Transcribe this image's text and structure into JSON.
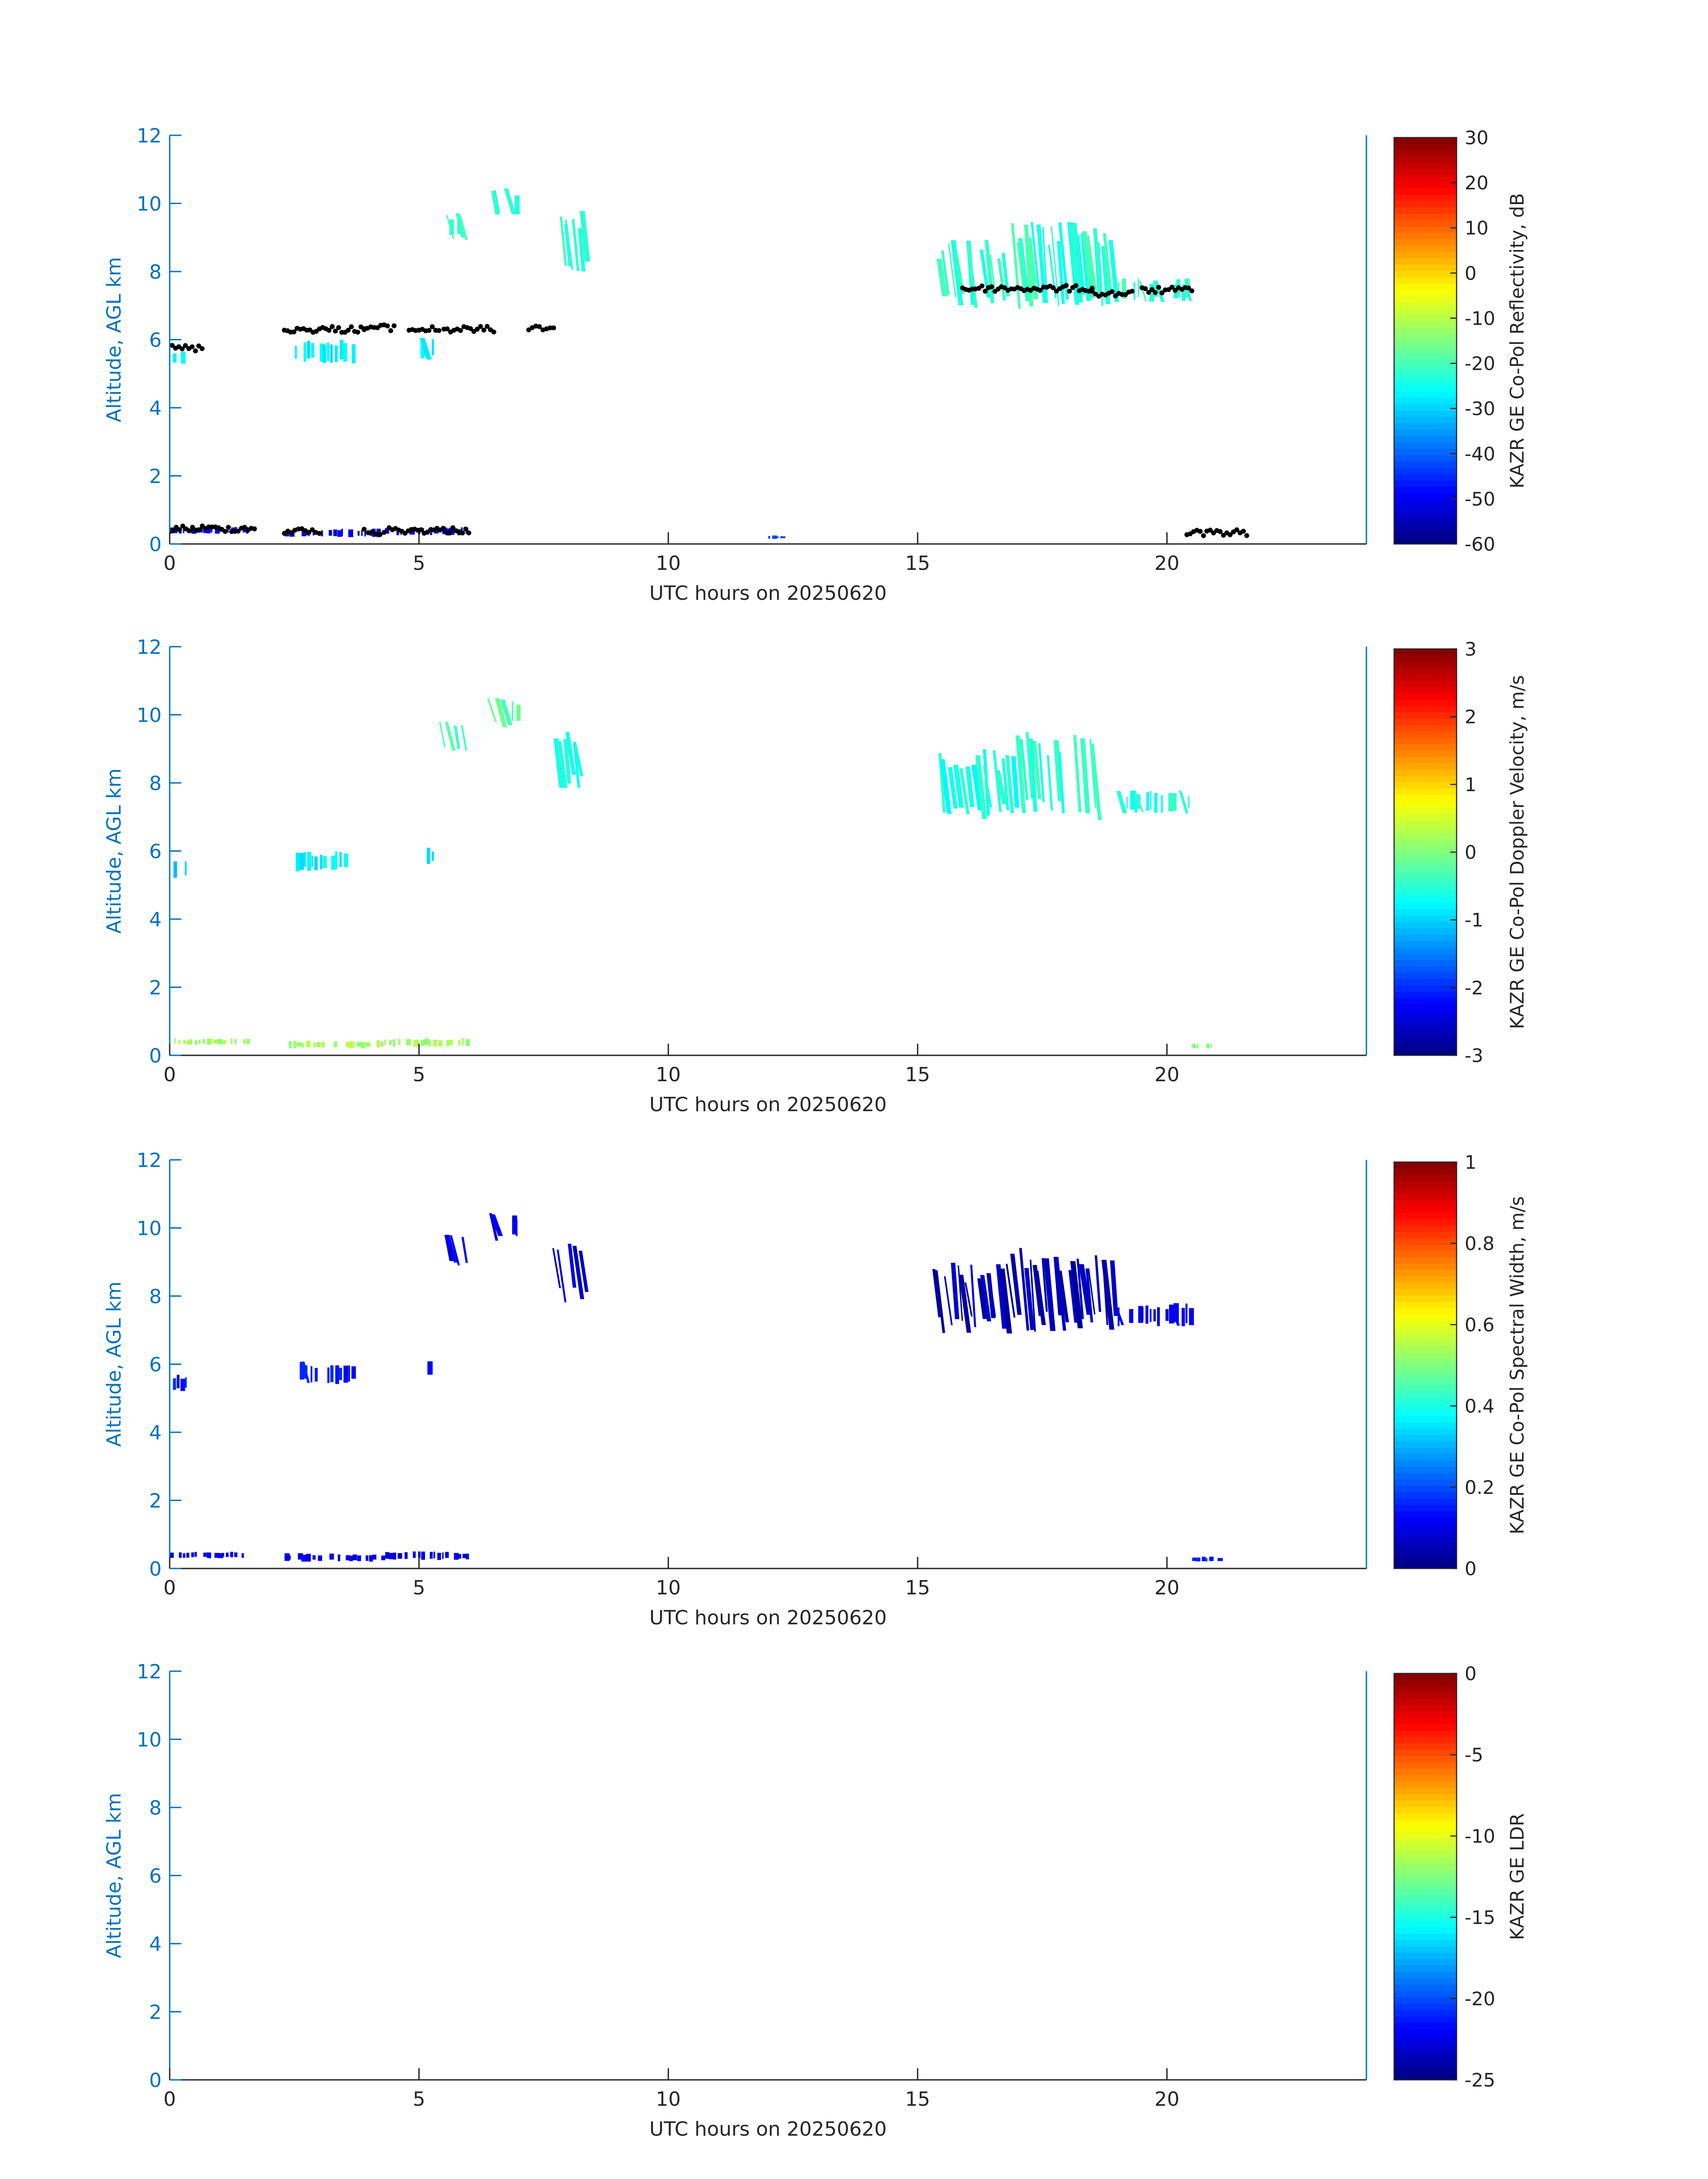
{
  "figure": {
    "xlabel": "UTC hours on 20250620",
    "ylabel": "Altitude, AGL km",
    "xlim": [
      0,
      24
    ],
    "ylim": [
      0,
      12
    ],
    "xticks": [
      "0",
      "5",
      "10",
      "15",
      "20"
    ],
    "yticks": [
      "0",
      "2",
      "4",
      "6",
      "8",
      "10",
      "12"
    ],
    "axis_color": "#0072bd",
    "text_color": "#262626",
    "colormap": "jet"
  },
  "chart_data": [
    {
      "type": "heatmap",
      "xlabel": "UTC hours on 20250620",
      "ylabel": "Altitude, AGL km",
      "xlim": [
        0,
        24
      ],
      "ylim": [
        0,
        12
      ],
      "colorbar": {
        "label": "KAZR GE Co-Pol Reflectivity, dB",
        "range": [
          -60,
          30
        ],
        "ticks": [
          "30",
          "20",
          "10",
          "0",
          "-10",
          "-20",
          "-30",
          "-40",
          "-50",
          "-60"
        ]
      },
      "echoes": [
        {
          "x0": 0.05,
          "x1": 0.35,
          "y0": 5.2,
          "y1": 5.7,
          "value": -28
        },
        {
          "x0": 2.5,
          "x1": 3.7,
          "y0": 5.3,
          "y1": 6.0,
          "value": -28
        },
        {
          "x0": 5.0,
          "x1": 5.3,
          "y0": 5.4,
          "y1": 6.1,
          "value": -28
        },
        {
          "x0": 5.5,
          "x1": 6.0,
          "y0": 8.9,
          "y1": 9.8,
          "value": -22
        },
        {
          "x0": 6.5,
          "x1": 7.0,
          "y0": 9.6,
          "y1": 10.5,
          "value": -22
        },
        {
          "x0": 7.8,
          "x1": 8.4,
          "y0": 7.8,
          "y1": 9.8,
          "value": -22
        },
        {
          "x0": 15.4,
          "x1": 17.0,
          "y0": 6.9,
          "y1": 9.0,
          "value": -22
        },
        {
          "x0": 17.0,
          "x1": 19.0,
          "y0": 6.9,
          "y1": 9.5,
          "value": -22
        },
        {
          "x0": 19.0,
          "x1": 20.5,
          "y0": 7.1,
          "y1": 7.8,
          "value": -22
        },
        {
          "x0": 0.0,
          "x1": 1.6,
          "y0": 0.3,
          "y1": 0.5,
          "value": -52
        },
        {
          "x0": 2.3,
          "x1": 4.3,
          "y0": 0.2,
          "y1": 0.45,
          "value": -52
        },
        {
          "x0": 4.3,
          "x1": 6.0,
          "y0": 0.25,
          "y1": 0.5,
          "value": -52
        },
        {
          "x0": 12.0,
          "x1": 12.3,
          "y0": 0.15,
          "y1": 0.25,
          "value": -45
        }
      ],
      "cloud_base_points": [
        {
          "x0": 0.05,
          "x1": 0.65,
          "y": 5.75
        },
        {
          "x0": 2.3,
          "x1": 3.9,
          "y": 6.3
        },
        {
          "x0": 3.9,
          "x1": 4.5,
          "y": 6.35
        },
        {
          "x0": 4.8,
          "x1": 5.4,
          "y": 6.3
        },
        {
          "x0": 5.5,
          "x1": 6.5,
          "y": 6.3
        },
        {
          "x0": 7.2,
          "x1": 7.7,
          "y": 6.35
        },
        {
          "x0": 15.9,
          "x1": 18.5,
          "y": 7.5
        },
        {
          "x0": 18.5,
          "x1": 19.3,
          "y": 7.35
        },
        {
          "x0": 19.5,
          "x1": 20.5,
          "y": 7.45
        },
        {
          "x0": 0.0,
          "x1": 1.7,
          "y": 0.45
        },
        {
          "x0": 2.3,
          "x1": 3.0,
          "y": 0.38
        },
        {
          "x0": 3.9,
          "x1": 4.3,
          "y": 0.35
        },
        {
          "x0": 4.4,
          "x1": 6.0,
          "y": 0.4
        },
        {
          "x0": 20.4,
          "x1": 21.6,
          "y": 0.33
        }
      ]
    },
    {
      "type": "heatmap",
      "xlabel": "UTC hours on 20250620",
      "ylabel": "Altitude, AGL km",
      "xlim": [
        0,
        24
      ],
      "ylim": [
        0,
        12
      ],
      "colorbar": {
        "label": "KAZR GE Co-Pol Doppler Velocity, m/s",
        "range": [
          -3,
          3
        ],
        "ticks": [
          "3",
          "2",
          "1",
          "0",
          "-1",
          "-2",
          "-3"
        ]
      },
      "echoes": [
        {
          "x0": 0.05,
          "x1": 0.35,
          "y0": 5.2,
          "y1": 5.7,
          "value": -1.0
        },
        {
          "x0": 2.5,
          "x1": 3.7,
          "y0": 5.4,
          "y1": 6.0,
          "value": -0.8
        },
        {
          "x0": 5.0,
          "x1": 5.3,
          "y0": 5.6,
          "y1": 6.1,
          "value": -0.8
        },
        {
          "x0": 5.5,
          "x1": 6.0,
          "y0": 8.9,
          "y1": 9.8,
          "value": -0.4
        },
        {
          "x0": 6.5,
          "x1": 7.0,
          "y0": 9.6,
          "y1": 10.5,
          "value": -0.2
        },
        {
          "x0": 7.8,
          "x1": 8.4,
          "y0": 7.8,
          "y1": 9.6,
          "value": -0.5
        },
        {
          "x0": 15.4,
          "x1": 17.0,
          "y0": 6.9,
          "y1": 9.0,
          "value": -0.6
        },
        {
          "x0": 17.0,
          "x1": 19.0,
          "y0": 6.9,
          "y1": 9.5,
          "value": -0.5
        },
        {
          "x0": 19.0,
          "x1": 20.5,
          "y0": 7.1,
          "y1": 7.8,
          "value": -0.6
        },
        {
          "x0": 0.0,
          "x1": 1.6,
          "y0": 0.3,
          "y1": 0.5,
          "value": 0.2
        },
        {
          "x0": 2.3,
          "x1": 4.3,
          "y0": 0.2,
          "y1": 0.45,
          "value": 0.2
        },
        {
          "x0": 4.3,
          "x1": 6.0,
          "y0": 0.25,
          "y1": 0.5,
          "value": 0.2
        },
        {
          "x0": 20.5,
          "x1": 21.1,
          "y0": 0.2,
          "y1": 0.35,
          "value": 0.1
        }
      ]
    },
    {
      "type": "heatmap",
      "xlabel": "UTC hours on 20250620",
      "ylabel": "Altitude, AGL km",
      "xlim": [
        0,
        24
      ],
      "ylim": [
        0,
        12
      ],
      "colorbar": {
        "label": "KAZR GE Co-Pol Spectral Width, m/s",
        "range": [
          0,
          1
        ],
        "ticks": [
          "1",
          "0.8",
          "0.6",
          "0.4",
          "0.2",
          "0"
        ]
      },
      "echoes": [
        {
          "x0": 0.05,
          "x1": 0.35,
          "y0": 5.2,
          "y1": 5.7,
          "value": 0.15
        },
        {
          "x0": 2.5,
          "x1": 3.7,
          "y0": 5.4,
          "y1": 6.1,
          "value": 0.15
        },
        {
          "x0": 5.0,
          "x1": 5.3,
          "y0": 5.6,
          "y1": 6.2,
          "value": 0.15
        },
        {
          "x0": 5.5,
          "x1": 6.0,
          "y0": 8.9,
          "y1": 9.8,
          "value": 0.1
        },
        {
          "x0": 6.5,
          "x1": 7.0,
          "y0": 9.6,
          "y1": 10.5,
          "value": 0.1
        },
        {
          "x0": 7.8,
          "x1": 8.4,
          "y0": 7.8,
          "y1": 9.8,
          "value": 0.08
        },
        {
          "x0": 15.4,
          "x1": 17.0,
          "y0": 6.9,
          "y1": 9.0,
          "value": 0.05
        },
        {
          "x0": 17.0,
          "x1": 19.0,
          "y0": 6.9,
          "y1": 9.5,
          "value": 0.05
        },
        {
          "x0": 19.0,
          "x1": 20.5,
          "y0": 7.1,
          "y1": 7.8,
          "value": 0.1
        },
        {
          "x0": 0.0,
          "x1": 1.6,
          "y0": 0.3,
          "y1": 0.5,
          "value": 0.1
        },
        {
          "x0": 2.3,
          "x1": 4.3,
          "y0": 0.2,
          "y1": 0.45,
          "value": 0.1
        },
        {
          "x0": 4.3,
          "x1": 6.0,
          "y0": 0.25,
          "y1": 0.5,
          "value": 0.1
        },
        {
          "x0": 20.5,
          "x1": 21.1,
          "y0": 0.2,
          "y1": 0.35,
          "value": 0.15
        }
      ]
    },
    {
      "type": "heatmap",
      "xlabel": "UTC hours on 20250620",
      "ylabel": "Altitude, AGL km",
      "xlim": [
        0,
        24
      ],
      "ylim": [
        0,
        12
      ],
      "colorbar": {
        "label": "KAZR GE LDR",
        "range": [
          -25,
          0
        ],
        "ticks": [
          "0",
          "-5",
          "-10",
          "-15",
          "-20",
          "-25"
        ]
      },
      "echoes": []
    }
  ]
}
